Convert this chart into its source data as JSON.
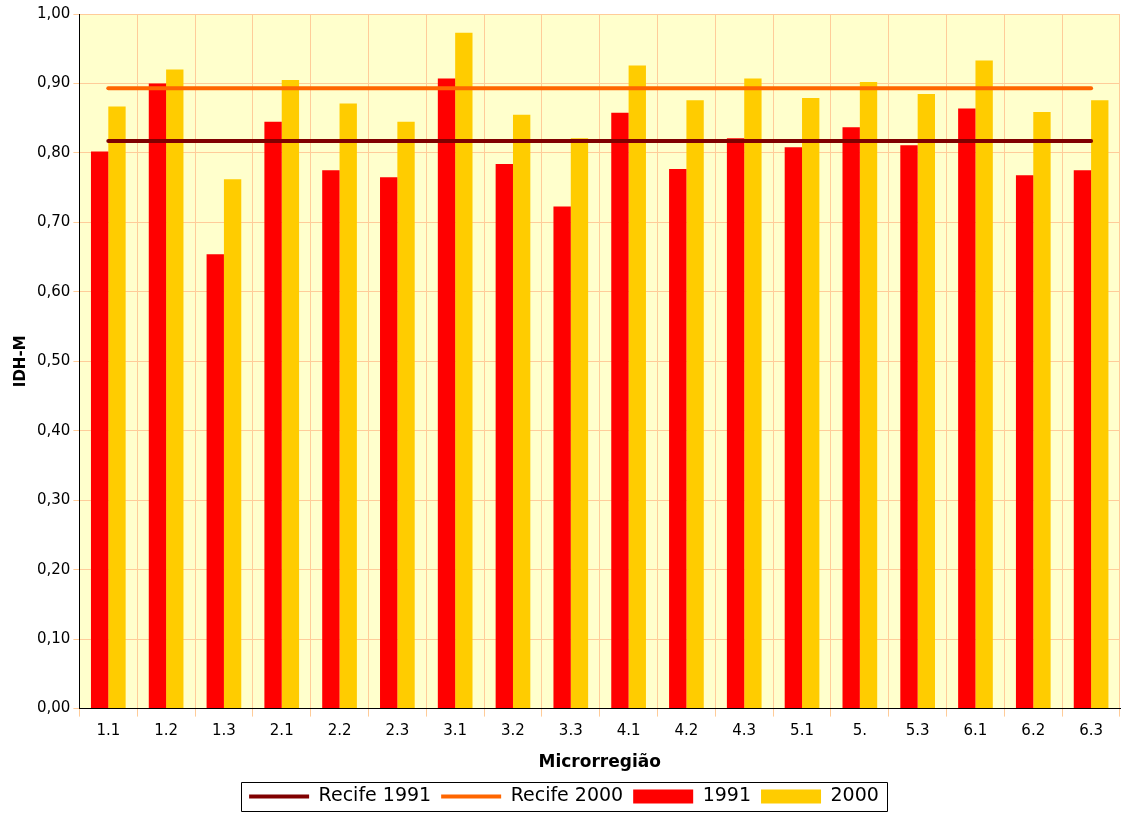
{
  "chart_data": {
    "type": "bar",
    "xlabel": "Microrregião",
    "ylabel": "IDH-M",
    "categories": [
      "1.1",
      "1.2",
      "1.3",
      "2.1",
      "2.2",
      "2.3",
      "3.1",
      "3.2",
      "3.3",
      "4.1",
      "4.2",
      "4.3",
      "5.1",
      "5.",
      "5.3",
      "6.1",
      "6.2",
      "6.3"
    ],
    "series": [
      {
        "name": "1991",
        "color": "#ff0000",
        "values": [
          0.802,
          0.9,
          0.654,
          0.845,
          0.775,
          0.765,
          0.907,
          0.784,
          0.723,
          0.858,
          0.777,
          0.821,
          0.808,
          0.837,
          0.811,
          0.864,
          0.768,
          0.775
        ]
      },
      {
        "name": "2000",
        "color": "#ffcc00",
        "values": [
          0.867,
          0.92,
          0.762,
          0.905,
          0.871,
          0.845,
          0.973,
          0.855,
          0.821,
          0.926,
          0.876,
          0.907,
          0.879,
          0.902,
          0.885,
          0.933,
          0.859,
          0.876
        ]
      },
      {
        "name": "Recife 1991",
        "type": "line",
        "color": "#800000",
        "values": [
          0.817,
          0.817,
          0.817,
          0.817,
          0.817,
          0.817,
          0.817,
          0.817,
          0.817,
          0.817,
          0.817,
          0.817,
          0.817,
          0.817,
          0.817,
          0.817,
          0.817,
          0.817
        ]
      },
      {
        "name": "Recife 2000",
        "type": "line",
        "color": "#ff6600",
        "values": [
          0.893,
          0.893,
          0.893,
          0.893,
          0.893,
          0.893,
          0.893,
          0.893,
          0.893,
          0.893,
          0.893,
          0.893,
          0.893,
          0.893,
          0.893,
          0.893,
          0.893,
          0.893
        ]
      }
    ],
    "ylim": [
      0,
      1
    ],
    "yticks": [
      {
        "value": 0,
        "label": "0,00"
      },
      {
        "value": 0.1,
        "label": "0,10"
      },
      {
        "value": 0.2,
        "label": "0,20"
      },
      {
        "value": 0.3,
        "label": "0,30"
      },
      {
        "value": 0.4,
        "label": "0,40"
      },
      {
        "value": 0.5,
        "label": "0,50"
      },
      {
        "value": 0.6,
        "label": "0,60"
      },
      {
        "value": 0.7,
        "label": "0,70"
      },
      {
        "value": 0.8,
        "label": "0,80"
      },
      {
        "value": 0.9,
        "label": "0,90"
      },
      {
        "value": 1,
        "label": "1,00"
      }
    ],
    "grid": true,
    "legend": "bottom",
    "marker": "none"
  }
}
